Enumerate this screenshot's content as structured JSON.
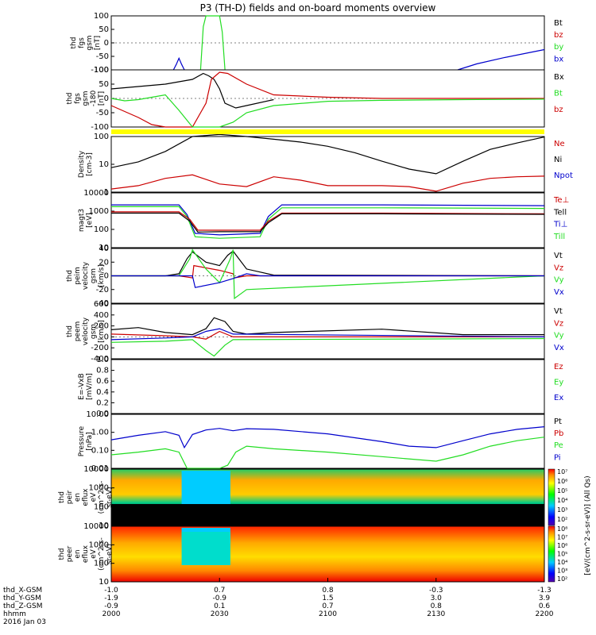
{
  "title": "P3 (TH-D) fields and on-board moments overview",
  "colors": {
    "black": "#000000",
    "red": "#cc0000",
    "green": "#22dd22",
    "blue": "#0000cc",
    "yellow": "#ffff00"
  },
  "chart_data": [
    {
      "id": "fgs",
      "type": "line",
      "ylabel": [
        "thd",
        "fgs",
        "gsm",
        "[nT]"
      ],
      "ylim": [
        -100,
        100
      ],
      "ticks": [
        "100",
        "50",
        "0",
        "-50",
        "-100"
      ],
      "legend": [
        {
          "name": "Bt",
          "color": "black"
        },
        {
          "name": "bz",
          "color": "red"
        },
        {
          "name": "by",
          "color": "green"
        },
        {
          "name": "bx",
          "color": "blue"
        }
      ],
      "series": [
        {
          "name": "bx",
          "color": "blue",
          "x": [
            2023,
            2024,
            2025,
            2026,
            2027
          ],
          "y": [
            -100,
            -80,
            -57,
            -80,
            -100
          ]
        },
        {
          "name": "by",
          "color": "green",
          "x": [
            2033,
            2034,
            2035,
            2040,
            2041,
            2042
          ],
          "y": [
            -100,
            60,
            100,
            100,
            40,
            -100
          ]
        },
        {
          "name": "bx",
          "color": "blue",
          "x": [
            2128,
            2135,
            2145,
            2155,
            2160
          ],
          "y": [
            -100,
            -78,
            -55,
            -35,
            -25
          ]
        }
      ]
    },
    {
      "id": "fgs2",
      "type": "line",
      "ylabel": [
        "thd",
        "fgs",
        "gsm",
        "-180",
        "[nT]"
      ],
      "ylim": [
        -120,
        120
      ],
      "ticks": [
        "100",
        "50",
        "0",
        "-50",
        "-100"
      ],
      "legend": [
        {
          "name": "Bx",
          "color": "black"
        },
        {
          "name": "Bt",
          "color": "green"
        },
        {
          "name": "bz",
          "color": "red"
        }
      ],
      "series": [
        {
          "name": "Bt",
          "color": "black",
          "x": [
            2000,
            2010,
            2020,
            2030,
            2034,
            2036,
            2038,
            2040,
            2042,
            2046,
            2050,
            2060
          ],
          "y": [
            40,
            50,
            60,
            80,
            105,
            95,
            80,
            40,
            -20,
            -40,
            -30,
            -5
          ]
        },
        {
          "name": "bz",
          "color": "red",
          "x": [
            2000,
            2005,
            2010,
            2015,
            2020,
            2030,
            2035,
            2037,
            2040,
            2043,
            2050,
            2060,
            2080,
            2100,
            2130,
            2160
          ],
          "y": [
            -30,
            -55,
            -80,
            -110,
            -120,
            -120,
            -20,
            80,
            110,
            105,
            60,
            15,
            5,
            0,
            0,
            0
          ]
        },
        {
          "name": "by",
          "color": "green",
          "x": [
            2000,
            2005,
            2010,
            2015,
            2020,
            2025,
            2030,
            2040,
            2045,
            2050,
            2060,
            2080,
            2100,
            2130,
            2160
          ],
          "y": [
            0,
            -10,
            -5,
            5,
            15,
            -50,
            -120,
            -120,
            -100,
            -60,
            -30,
            -12,
            -8,
            -5,
            -3
          ]
        }
      ]
    },
    {
      "id": "density",
      "type": "line",
      "ylabel": [
        "Density",
        "[cm-3]"
      ],
      "log": true,
      "ylim": [
        0.5,
        200
      ],
      "ticks": [
        "100",
        "10",
        "1"
      ],
      "legend": [
        {
          "name": "Ne",
          "color": "red"
        },
        {
          "name": "Ni",
          "color": "black"
        },
        {
          "name": "Npot",
          "color": "blue"
        }
      ],
      "series": [
        {
          "name": "Ni",
          "color": "black",
          "x": [
            2000,
            2010,
            2020,
            2030,
            2040,
            2050,
            2060,
            2070,
            2080,
            2090,
            2100,
            2110,
            2120,
            2130,
            2140,
            2150,
            2160
          ],
          "y": [
            7,
            13,
            40,
            200,
            250,
            200,
            150,
            110,
            70,
            35,
            14,
            6,
            3.6,
            14,
            50,
            100,
            190
          ]
        },
        {
          "name": "Ne",
          "color": "red",
          "x": [
            2000,
            2010,
            2020,
            2030,
            2040,
            2050,
            2060,
            2070,
            2080,
            2090,
            2100,
            2110,
            2120,
            2130,
            2140,
            2150,
            2160
          ],
          "y": [
            0.7,
            1,
            2.2,
            3.2,
            1.2,
            0.9,
            2.6,
            1.8,
            1,
            1,
            1,
            0.9,
            0.55,
            1.3,
            2.2,
            2.6,
            2.8
          ]
        }
      ]
    },
    {
      "id": "temp",
      "type": "line",
      "ylabel": [
        "magt3",
        "[eV]"
      ],
      "log": true,
      "ylim": [
        3,
        10000
      ],
      "ticks": [
        "10000",
        "1000",
        "100",
        "10"
      ],
      "legend": [
        {
          "name": "Te⊥",
          "color": "red"
        },
        {
          "name": "Tell",
          "color": "black"
        },
        {
          "name": "Ti⊥",
          "color": "blue"
        },
        {
          "name": "Till",
          "color": "green"
        }
      ],
      "series": [
        {
          "name": "Ti⊥",
          "color": "blue",
          "x": [
            2000,
            2025,
            2028,
            2031,
            2040,
            2055,
            2058,
            2063,
            2100,
            2160
          ],
          "y": [
            1700,
            1700,
            400,
            25,
            20,
            25,
            300,
            1700,
            1700,
            1500
          ]
        },
        {
          "name": "Till",
          "color": "green",
          "x": [
            2000,
            2025,
            2028,
            2031,
            2040,
            2055,
            2058,
            2063,
            2100,
            2160
          ],
          "y": [
            1300,
            1300,
            300,
            15,
            12,
            15,
            200,
            1100,
            1100,
            1000
          ]
        },
        {
          "name": "Te⊥",
          "color": "red",
          "x": [
            2000,
            2025,
            2029,
            2032,
            2040,
            2055,
            2058,
            2063,
            2100,
            2160
          ],
          "y": [
            600,
            600,
            200,
            40,
            40,
            40,
            150,
            500,
            500,
            450
          ]
        },
        {
          "name": "Tell",
          "color": "black",
          "x": [
            2000,
            2025,
            2029,
            2032,
            2040,
            2055,
            2058,
            2063,
            2100,
            2160
          ],
          "y": [
            500,
            500,
            150,
            30,
            32,
            32,
            120,
            450,
            450,
            420
          ]
        }
      ]
    },
    {
      "id": "veli",
      "type": "line",
      "ylabel": [
        "thd",
        "peim",
        "velocity",
        "gsm",
        "[km/s]"
      ],
      "ylim": [
        -40,
        40
      ],
      "ticks": [
        "40",
        "20",
        "0",
        "-20",
        "-40"
      ],
      "legend": [
        {
          "name": "Vt",
          "color": "black"
        },
        {
          "name": "Vz",
          "color": "red"
        },
        {
          "name": "Vy",
          "color": "green"
        },
        {
          "name": "Vx",
          "color": "blue"
        }
      ],
      "series": [
        {
          "name": "Vt",
          "color": "black",
          "x": [
            2000,
            2020,
            2025,
            2028,
            2030,
            2035,
            2040,
            2043,
            2045,
            2050,
            2060,
            2160
          ],
          "y": [
            0,
            0,
            3,
            25,
            35,
            20,
            15,
            30,
            36,
            10,
            1,
            0
          ]
        },
        {
          "name": "Vz",
          "color": "red",
          "x": [
            2000,
            2025,
            2030,
            2030.5,
            2040,
            2045,
            2045.5,
            2050,
            2160
          ],
          "y": [
            0,
            0,
            -3,
            15,
            8,
            3,
            -3,
            0,
            0
          ]
        },
        {
          "name": "Vy",
          "color": "green",
          "x": [
            2000,
            2025,
            2029,
            2030,
            2035,
            2040,
            2044,
            2045,
            2045.5,
            2050,
            2160
          ],
          "y": [
            0,
            0,
            25,
            38,
            10,
            -10,
            25,
            38,
            -33,
            -20,
            0
          ]
        },
        {
          "name": "Vx",
          "color": "blue",
          "x": [
            2000,
            2030,
            2031,
            2040,
            2045,
            2050,
            2055,
            2160
          ],
          "y": [
            0,
            0,
            -17,
            -10,
            -4,
            3,
            0,
            0
          ]
        }
      ]
    },
    {
      "id": "vele",
      "type": "line",
      "ylabel": [
        "thd",
        "peem",
        "velocity",
        "gsm",
        "[km/s]"
      ],
      "ylim": [
        -400,
        600
      ],
      "ticks": [
        "600",
        "400",
        "200",
        "0",
        "-200",
        "-400"
      ],
      "legend": [
        {
          "name": "Vt",
          "color": "black"
        },
        {
          "name": "Vz",
          "color": "red"
        },
        {
          "name": "Vy",
          "color": "green"
        },
        {
          "name": "Vx",
          "color": "blue"
        }
      ],
      "series": [
        {
          "name": "Vt",
          "color": "black",
          "x": [
            2000,
            2010,
            2020,
            2030,
            2035,
            2038,
            2042,
            2045,
            2050,
            2060,
            2100,
            2130,
            2160
          ],
          "y": [
            130,
            170,
            80,
            40,
            150,
            350,
            280,
            100,
            50,
            80,
            140,
            40,
            40
          ]
        },
        {
          "name": "Vz",
          "color": "red",
          "x": [
            2000,
            2020,
            2030,
            2035,
            2040,
            2045,
            2160
          ],
          "y": [
            50,
            20,
            0,
            -40,
            100,
            0,
            0
          ]
        },
        {
          "name": "Vy",
          "color": "green",
          "x": [
            2000,
            2020,
            2030,
            2035,
            2038,
            2042,
            2045,
            2160
          ],
          "y": [
            -100,
            -80,
            -50,
            -250,
            -350,
            -150,
            -50,
            -30
          ]
        },
        {
          "name": "Vx",
          "color": "blue",
          "x": [
            2000,
            2020,
            2030,
            2035,
            2040,
            2045,
            2160
          ],
          "y": [
            -50,
            -20,
            0,
            100,
            150,
            50,
            0
          ]
        }
      ]
    },
    {
      "id": "efield",
      "type": "line",
      "ylabel": [
        "E=-VxB",
        "[mV/m]"
      ],
      "ylim": [
        0,
        1
      ],
      "ticks": [
        "1.0",
        "0.8",
        "0.6",
        "0.4",
        "0.2",
        "0.0"
      ],
      "legend": [
        {
          "name": "Ez",
          "color": "red"
        },
        {
          "name": "Ey",
          "color": "green"
        },
        {
          "name": "Ex",
          "color": "blue"
        }
      ],
      "series": []
    },
    {
      "id": "pressure",
      "type": "line",
      "ylabel": [
        "Pressure",
        "[nPa]"
      ],
      "log": true,
      "ylim": [
        0.005,
        20
      ],
      "ticks": [
        "10.00",
        "1.00",
        "0.10",
        "0.01"
      ],
      "legend": [
        {
          "name": "Pt",
          "color": "black"
        },
        {
          "name": "Pb",
          "color": "red"
        },
        {
          "name": "Pe",
          "color": "green"
        },
        {
          "name": "Pi",
          "color": "blue"
        }
      ],
      "series": [
        {
          "name": "Pi",
          "color": "blue",
          "x": [
            2000,
            2010,
            2020,
            2025,
            2027,
            2030,
            2035,
            2040,
            2045,
            2050,
            2060,
            2080,
            2100,
            2110,
            2120,
            2130,
            2140,
            2150,
            2160
          ],
          "y": [
            0.4,
            0.8,
            1.4,
            0.8,
            0.12,
            0.9,
            1.8,
            2.3,
            1.6,
            2.2,
            2,
            1,
            0.3,
            0.15,
            0.12,
            0.35,
            1,
            2,
            3
          ]
        },
        {
          "name": "Pe",
          "color": "green",
          "x": [
            2000,
            2010,
            2020,
            2025,
            2028,
            2030,
            2040,
            2043,
            2046,
            2050,
            2060,
            2080,
            2100,
            2120,
            2130,
            2140,
            2150,
            2160
          ],
          "y": [
            0.04,
            0.06,
            0.1,
            0.06,
            0.005,
            0.003,
            0.003,
            0.008,
            0.06,
            0.15,
            0.1,
            0.06,
            0.03,
            0.015,
            0.04,
            0.15,
            0.35,
            0.6
          ]
        }
      ]
    },
    {
      "id": "ion_spec",
      "type": "heatmap",
      "ylabel": [
        "thd",
        "peir",
        "en",
        "eflux",
        "eV",
        "(cm^2-s-",
        "sr-eV)"
      ],
      "log": true,
      "ylim": [
        5,
        20000
      ],
      "ticks": [
        "10000",
        "1000",
        "100",
        "10"
      ]
    },
    {
      "id": "ele_spec",
      "type": "heatmap",
      "ylabel": [
        "thd",
        "peer",
        "en",
        "eflux",
        "eV",
        "(cm^2-s-",
        "sr-eV)"
      ],
      "log": true,
      "ylim": [
        5,
        20000
      ],
      "ticks": [
        "10000",
        "1000",
        "100",
        "10"
      ]
    }
  ],
  "colorbar": {
    "label": "[eV/(cm^2-s-sr-eV)] (All Qs)",
    "ticks": [
      "10⁷",
      "10⁶",
      "10⁵",
      "10⁴",
      "10³",
      "10²",
      "10⁸",
      "10⁷",
      "10⁶",
      "10⁵",
      "10⁴",
      "10³",
      "10²"
    ]
  },
  "xaxis": {
    "row_labels": [
      "thd_X-GSM",
      "thd_Y-GSM",
      "thd_Z-GSM",
      "hhmm",
      "2016 Jan 03"
    ],
    "columns": [
      {
        "x": 2000,
        "vals": [
          "-1.0",
          "-1.9",
          "-0.9",
          "2000"
        ]
      },
      {
        "x": 2030,
        "vals": [
          "0.7",
          "-0.9",
          "0.1",
          "2030"
        ]
      },
      {
        "x": 2100,
        "vals": [
          "0.8",
          "1.5",
          "0.7",
          "2100"
        ]
      },
      {
        "x": 2130,
        "vals": [
          "-0.3",
          "3.0",
          "0.8",
          "2130"
        ]
      },
      {
        "x": 2200,
        "vals": [
          "-1.3",
          "3.9",
          "0.6",
          "2200"
        ]
      }
    ]
  }
}
